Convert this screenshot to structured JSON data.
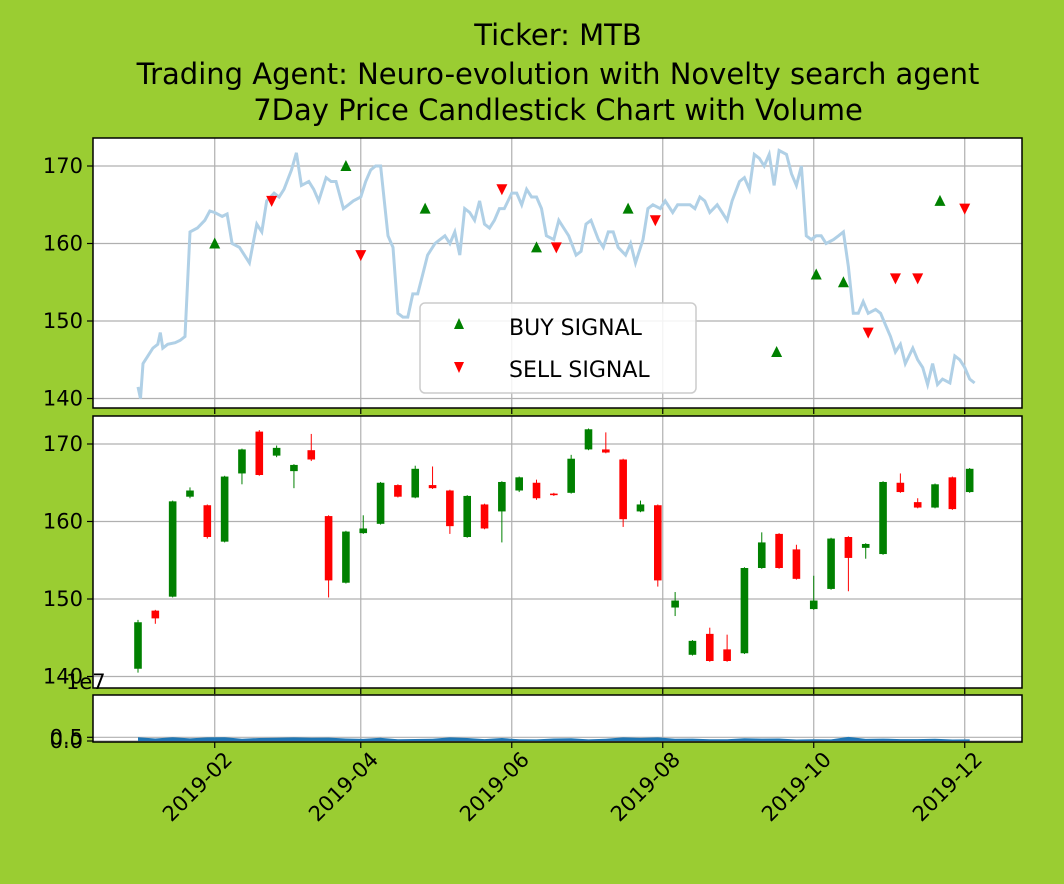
{
  "title_lines": [
    "Ticker: MTB",
    "Trading Agent: Neuro-evolution with Novelty search agent",
    "7Day Price Candlestick Chart with Volume"
  ],
  "colors": {
    "background": "#9acd32",
    "line": "#b0d0e6",
    "up": "#008000",
    "down": "#ff0000",
    "volume": "#1f77b4",
    "grid": "#b0b0b0"
  },
  "legend": {
    "buy": "BUY SIGNAL",
    "sell": "SELL SIGNAL",
    "placement": "lower center"
  },
  "volume_scale_label": "1e7",
  "chart_data": [
    {
      "type": "line",
      "name": "price_with_signals",
      "x_range": [
        "2019-01-01",
        "2019-12-05"
      ],
      "ylim": [
        139,
        173.5
      ],
      "yticks": [
        140,
        150,
        160,
        170
      ],
      "grid": true,
      "series": [
        {
          "kind": "line",
          "points": [
            [
              "2019-01-01",
              141.5
            ],
            [
              "2019-01-02",
              140.0
            ],
            [
              "2019-01-03",
              144.5
            ],
            [
              "2019-01-05",
              145.5
            ],
            [
              "2019-01-07",
              146.5
            ],
            [
              "2019-01-09",
              147.0
            ],
            [
              "2019-01-10",
              148.5
            ],
            [
              "2019-01-11",
              146.5
            ],
            [
              "2019-01-13",
              147.0
            ],
            [
              "2019-01-16",
              147.2
            ],
            [
              "2019-01-18",
              147.5
            ],
            [
              "2019-01-20",
              148.0
            ],
            [
              "2019-01-22",
              161.5
            ],
            [
              "2019-01-25",
              162.0
            ],
            [
              "2019-01-28",
              163.0
            ],
            [
              "2019-01-30",
              164.2
            ],
            [
              "2019-02-01",
              164.0
            ],
            [
              "2019-02-04",
              163.5
            ],
            [
              "2019-02-06",
              163.8
            ],
            [
              "2019-02-08",
              160.0
            ],
            [
              "2019-02-11",
              159.5
            ],
            [
              "2019-02-13",
              158.5
            ],
            [
              "2019-02-15",
              157.5
            ],
            [
              "2019-02-18",
              162.5
            ],
            [
              "2019-02-20",
              161.5
            ],
            [
              "2019-02-22",
              165.5
            ],
            [
              "2019-02-25",
              166.5
            ],
            [
              "2019-02-27",
              166.0
            ],
            [
              "2019-03-01",
              167.0
            ],
            [
              "2019-03-04",
              169.5
            ],
            [
              "2019-03-06",
              171.7
            ],
            [
              "2019-03-08",
              167.5
            ],
            [
              "2019-03-11",
              168.0
            ],
            [
              "2019-03-13",
              167.0
            ],
            [
              "2019-03-15",
              165.5
            ],
            [
              "2019-03-18",
              168.5
            ],
            [
              "2019-03-20",
              168.0
            ],
            [
              "2019-03-22",
              168.0
            ],
            [
              "2019-03-25",
              164.5
            ],
            [
              "2019-03-27",
              165.0
            ],
            [
              "2019-03-29",
              165.5
            ],
            [
              "2019-04-01",
              166.0
            ],
            [
              "2019-04-03",
              168.0
            ],
            [
              "2019-04-05",
              169.5
            ],
            [
              "2019-04-07",
              170.0
            ],
            [
              "2019-04-09",
              170.0
            ],
            [
              "2019-04-12",
              161.0
            ],
            [
              "2019-04-14",
              159.5
            ],
            [
              "2019-04-16",
              151.0
            ],
            [
              "2019-04-18",
              150.5
            ],
            [
              "2019-04-20",
              150.5
            ],
            [
              "2019-04-22",
              153.5
            ],
            [
              "2019-04-24",
              153.5
            ],
            [
              "2019-04-26",
              156.0
            ],
            [
              "2019-04-28",
              158.5
            ],
            [
              "2019-05-01",
              160.0
            ],
            [
              "2019-05-03",
              160.5
            ],
            [
              "2019-05-05",
              161.0
            ],
            [
              "2019-05-07",
              160.0
            ],
            [
              "2019-05-09",
              161.5
            ],
            [
              "2019-05-11",
              158.5
            ],
            [
              "2019-05-13",
              164.5
            ],
            [
              "2019-05-15",
              164.0
            ],
            [
              "2019-05-17",
              163.0
            ],
            [
              "2019-05-19",
              165.5
            ],
            [
              "2019-05-21",
              162.5
            ],
            [
              "2019-05-23",
              162.0
            ],
            [
              "2019-05-25",
              163.0
            ],
            [
              "2019-05-27",
              164.5
            ],
            [
              "2019-05-29",
              164.5
            ],
            [
              "2019-06-01",
              166.5
            ],
            [
              "2019-06-03",
              166.5
            ],
            [
              "2019-06-05",
              165.0
            ],
            [
              "2019-06-07",
              167.0
            ],
            [
              "2019-06-09",
              166.0
            ],
            [
              "2019-06-11",
              166.0
            ],
            [
              "2019-06-13",
              164.5
            ],
            [
              "2019-06-15",
              161.0
            ],
            [
              "2019-06-18",
              160.5
            ],
            [
              "2019-06-20",
              163.0
            ],
            [
              "2019-06-22",
              162.0
            ],
            [
              "2019-06-24",
              161.0
            ],
            [
              "2019-06-27",
              158.5
            ],
            [
              "2019-06-29",
              159.0
            ],
            [
              "2019-07-01",
              162.5
            ],
            [
              "2019-07-03",
              163.0
            ],
            [
              "2019-07-06",
              160.5
            ],
            [
              "2019-07-08",
              159.5
            ],
            [
              "2019-07-10",
              161.5
            ],
            [
              "2019-07-12",
              161.5
            ],
            [
              "2019-07-14",
              159.5
            ],
            [
              "2019-07-17",
              158.5
            ],
            [
              "2019-07-19",
              160.0
            ],
            [
              "2019-07-21",
              157.5
            ],
            [
              "2019-07-24",
              160.5
            ],
            [
              "2019-07-26",
              164.5
            ],
            [
              "2019-07-28",
              165.0
            ],
            [
              "2019-07-31",
              164.5
            ],
            [
              "2019-08-02",
              165.5
            ],
            [
              "2019-08-05",
              164.0
            ],
            [
              "2019-08-07",
              165.0
            ],
            [
              "2019-08-09",
              165.0
            ],
            [
              "2019-08-12",
              165.0
            ],
            [
              "2019-08-14",
              164.5
            ],
            [
              "2019-08-16",
              166.0
            ],
            [
              "2019-08-18",
              165.5
            ],
            [
              "2019-08-20",
              164.0
            ],
            [
              "2019-08-23",
              165.0
            ],
            [
              "2019-08-25",
              164.0
            ],
            [
              "2019-08-27",
              163.0
            ],
            [
              "2019-08-29",
              165.5
            ],
            [
              "2019-09-01",
              168.0
            ],
            [
              "2019-09-03",
              168.5
            ],
            [
              "2019-09-05",
              167.0
            ],
            [
              "2019-09-07",
              171.5
            ],
            [
              "2019-09-09",
              171.0
            ],
            [
              "2019-09-11",
              170.0
            ],
            [
              "2019-09-13",
              171.5
            ],
            [
              "2019-09-15",
              167.5
            ],
            [
              "2019-09-17",
              172.0
            ],
            [
              "2019-09-20",
              171.5
            ],
            [
              "2019-09-22",
              169.0
            ],
            [
              "2019-09-24",
              167.5
            ],
            [
              "2019-09-26",
              170.0
            ],
            [
              "2019-09-28",
              161.0
            ],
            [
              "2019-09-30",
              160.5
            ],
            [
              "2019-10-02",
              161.0
            ],
            [
              "2019-10-04",
              161.0
            ],
            [
              "2019-10-06",
              160.0
            ],
            [
              "2019-10-09",
              160.5
            ],
            [
              "2019-10-11",
              161.0
            ],
            [
              "2019-10-13",
              161.5
            ],
            [
              "2019-10-15",
              157.0
            ],
            [
              "2019-10-17",
              151.0
            ],
            [
              "2019-10-19",
              151.0
            ],
            [
              "2019-10-21",
              152.5
            ],
            [
              "2019-10-23",
              151.0
            ],
            [
              "2019-10-26",
              151.5
            ],
            [
              "2019-10-28",
              151.0
            ],
            [
              "2019-10-30",
              149.5
            ],
            [
              "2019-11-01",
              148.0
            ],
            [
              "2019-11-03",
              146.0
            ],
            [
              "2019-11-05",
              147.0
            ],
            [
              "2019-11-07",
              144.5
            ],
            [
              "2019-11-10",
              146.5
            ],
            [
              "2019-11-12",
              145.0
            ],
            [
              "2019-11-14",
              144.0
            ],
            [
              "2019-11-16",
              141.8
            ],
            [
              "2019-11-18",
              144.5
            ],
            [
              "2019-11-20",
              141.8
            ],
            [
              "2019-11-22",
              142.5
            ],
            [
              "2019-11-25",
              142.0
            ],
            [
              "2019-11-27",
              145.5
            ],
            [
              "2019-11-29",
              145.0
            ],
            [
              "2019-12-01",
              144.0
            ],
            [
              "2019-12-03",
              142.5
            ],
            [
              "2019-12-05",
              142.0
            ]
          ]
        }
      ]
    }
  ]
}
